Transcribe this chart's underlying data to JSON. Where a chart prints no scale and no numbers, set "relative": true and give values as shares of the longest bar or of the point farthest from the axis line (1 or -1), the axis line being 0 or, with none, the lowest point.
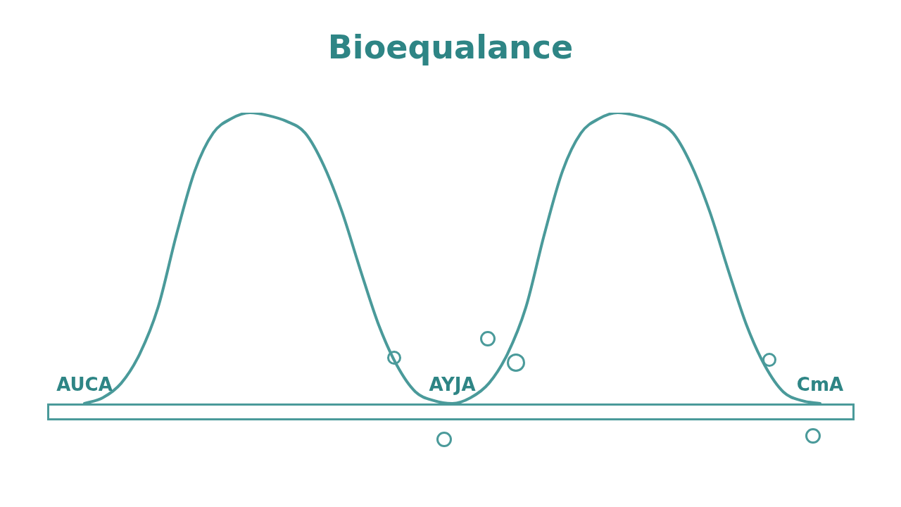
{
  "chart_data": {
    "type": "line",
    "title": "Bioequalance",
    "relative": true,
    "color": "#4a9a9a",
    "marker": "none",
    "categories": [
      null,
      null,
      null,
      null,
      null,
      null,
      null,
      null,
      null,
      null,
      null,
      null,
      null,
      null,
      null,
      null,
      null,
      null,
      null,
      null,
      null,
      null,
      null,
      null,
      null,
      null,
      null,
      null,
      null,
      null,
      null,
      null,
      null,
      null,
      null,
      null,
      null,
      null,
      null,
      null,
      null
    ],
    "values": [
      0,
      0.02,
      0.07,
      0.17,
      0.33,
      0.58,
      0.8,
      0.93,
      0.98,
      1,
      0.99,
      0.97,
      0.93,
      0.82,
      0.66,
      0.46,
      0.27,
      0.13,
      0.04,
      0.01,
      0,
      0.02,
      0.07,
      0.17,
      0.33,
      0.58,
      0.8,
      0.93,
      0.98,
      1,
      0.99,
      0.97,
      0.93,
      0.82,
      0.66,
      0.46,
      0.27,
      0.13,
      0.04,
      0.01,
      0
    ],
    "annotations": [
      "AUCA",
      "AYJA",
      "CmA"
    ]
  }
}
